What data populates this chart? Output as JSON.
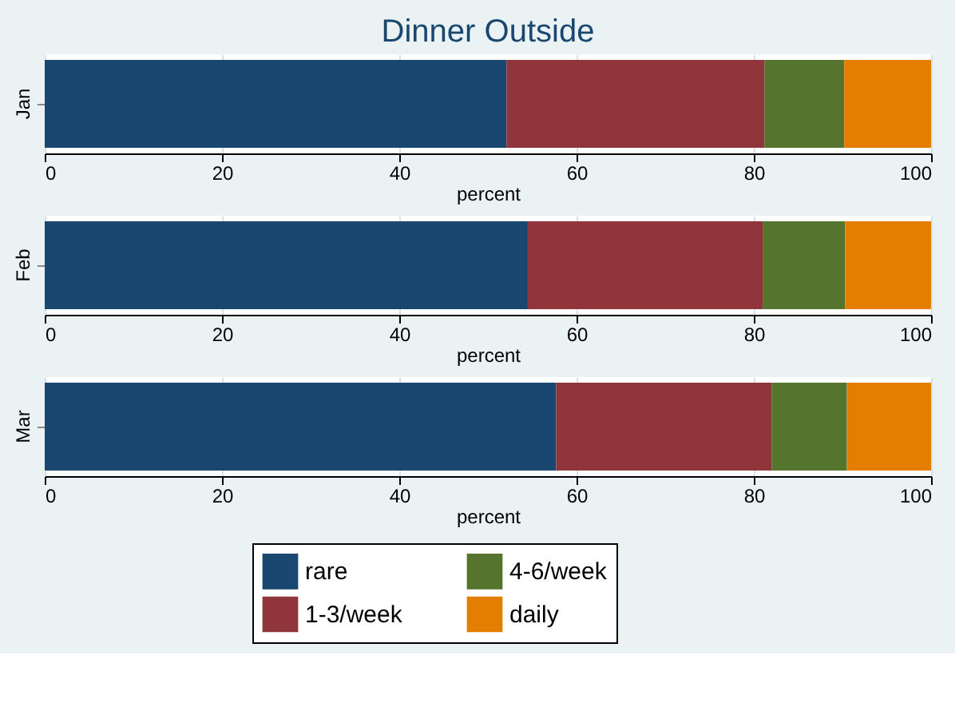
{
  "chart_data": [
    {
      "type": "bar",
      "orientation": "horizontal",
      "stacked": true,
      "title": "Dinner Outside",
      "categories": [
        "Jan"
      ],
      "xlabel": "percent",
      "xlim": [
        0,
        100
      ],
      "xticks": [
        0,
        20,
        40,
        60,
        80,
        100
      ],
      "grid": "x",
      "series": [
        {
          "color": "#1a476f",
          "values": [
            52.1
          ]
        },
        {
          "color": "#90353b",
          "values": [
            29.1
          ]
        },
        {
          "color": "#55752f",
          "values": [
            9.0
          ]
        },
        {
          "color": "#e37e00",
          "values": [
            9.8
          ]
        }
      ]
    },
    {
      "type": "bar",
      "orientation": "horizontal",
      "stacked": true,
      "categories": [
        "Feb"
      ],
      "xlabel": "percent",
      "xlim": [
        0,
        100
      ],
      "xticks": [
        0,
        20,
        40,
        60,
        80,
        100
      ],
      "grid": "x",
      "series": [
        {
          "color": "#1a476f",
          "values": [
            54.5
          ]
        },
        {
          "color": "#90353b",
          "values": [
            26.5
          ]
        },
        {
          "color": "#55752f",
          "values": [
            9.3
          ]
        },
        {
          "color": "#e37e00",
          "values": [
            9.7
          ]
        }
      ]
    },
    {
      "type": "bar",
      "orientation": "horizontal",
      "stacked": true,
      "categories": [
        "Mar"
      ],
      "xlabel": "percent",
      "xlim": [
        0,
        100
      ],
      "xticks": [
        0,
        20,
        40,
        60,
        80,
        100
      ],
      "grid": "x",
      "legend": "bottom",
      "series": [
        {
          "name": "rare",
          "color": "#1a476f",
          "values": [
            57.7
          ]
        },
        {
          "name": "1-3/week",
          "color": "#90353b",
          "values": [
            24.3
          ]
        },
        {
          "name": "4-6/week",
          "color": "#55752f",
          "values": [
            8.5
          ]
        },
        {
          "name": "daily",
          "color": "#e37e00",
          "values": [
            9.5
          ]
        }
      ]
    }
  ]
}
